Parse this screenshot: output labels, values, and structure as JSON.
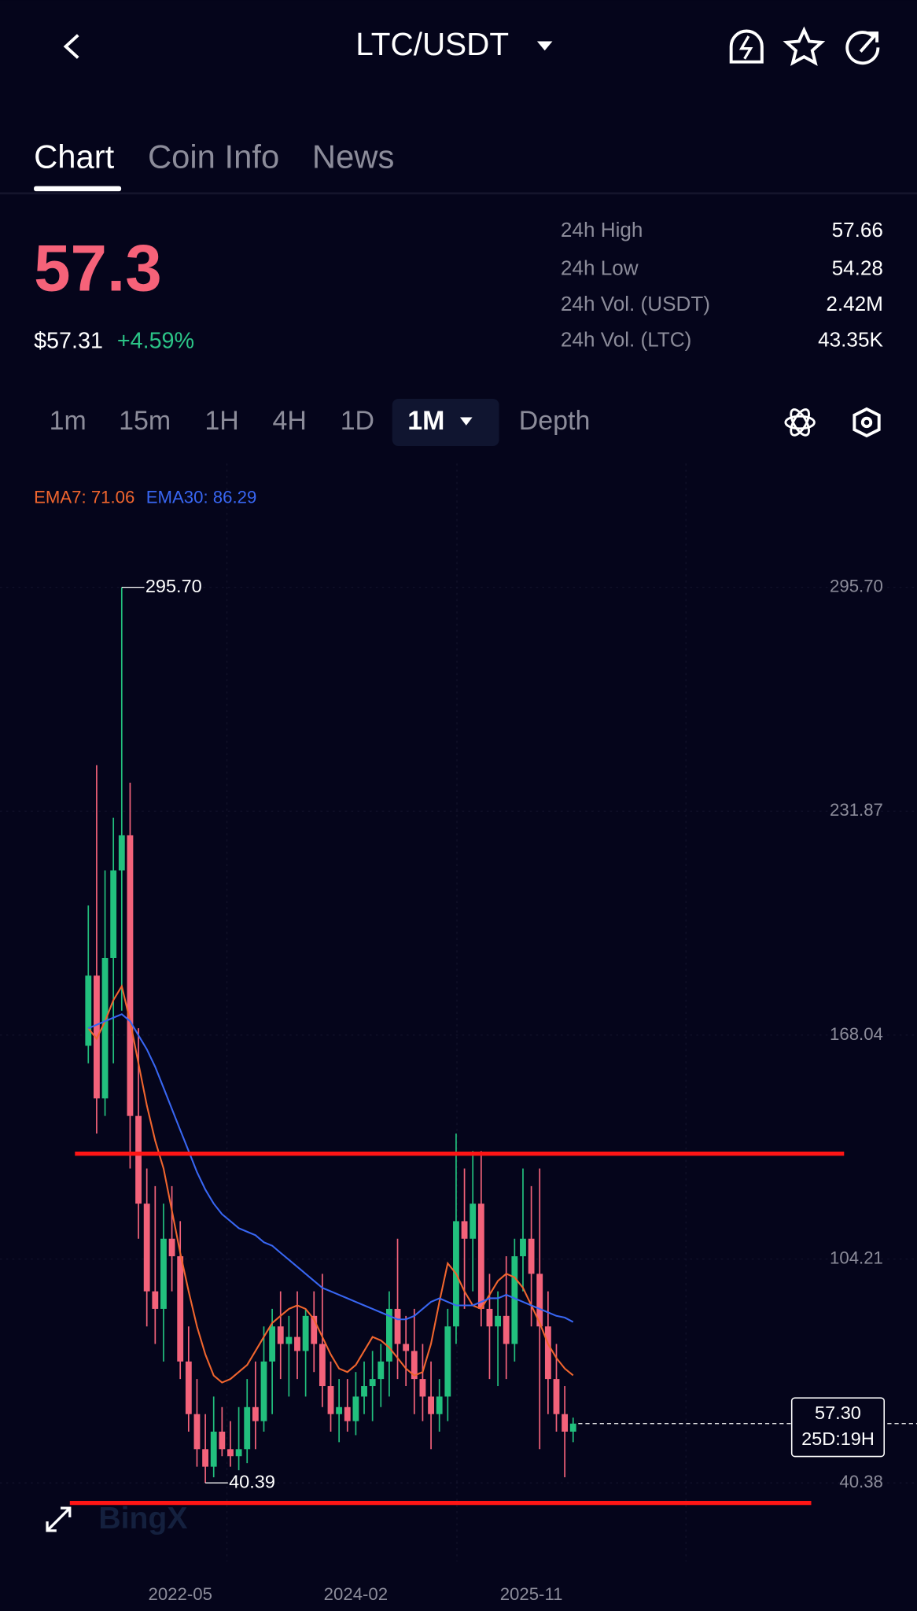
{
  "header": {
    "title": "LTC/USDT"
  },
  "tabs": [
    "Chart",
    "Coin Info",
    "News"
  ],
  "price": {
    "last": "57.3",
    "usd": "$57.31",
    "change": "+4.59%"
  },
  "stats": [
    {
      "label": "24h High",
      "value": "57.66"
    },
    {
      "label": "24h Low",
      "value": "54.28"
    },
    {
      "label": "24h Vol. (USDT)",
      "value": "2.42M"
    },
    {
      "label": "24h Vol. (LTC)",
      "value": "43.35K"
    }
  ],
  "intervals": [
    "1m",
    "15m",
    "1H",
    "4H",
    "1D",
    "1M",
    "Depth"
  ],
  "watermark": "BingX",
  "chart_data": {
    "type": "candlestick",
    "categories": [
      null,
      null,
      null,
      null,
      null,
      null,
      null,
      null,
      null,
      null,
      null,
      "2022-05",
      null,
      null,
      null,
      null,
      null,
      null,
      null,
      null,
      null,
      null,
      null,
      null,
      null,
      null,
      null,
      null,
      null,
      null,
      null,
      null,
      "2024-02",
      null,
      null,
      null,
      null,
      null,
      null,
      null,
      null,
      null,
      null,
      null,
      null,
      null,
      null,
      null,
      null,
      null,
      null,
      null,
      null,
      "2025-11",
      null,
      null,
      null,
      null,
      null
    ],
    "open": [
      165,
      185,
      150,
      190,
      215,
      225,
      145,
      120,
      95,
      90,
      110,
      105,
      75,
      60,
      50,
      45,
      55,
      50,
      48,
      50,
      62,
      58,
      75,
      85,
      80,
      82,
      78,
      88,
      80,
      68,
      60,
      62,
      58,
      65,
      68,
      70,
      75,
      90,
      80,
      78,
      70,
      65,
      60,
      65,
      85,
      115,
      110,
      120,
      90,
      85,
      88,
      80,
      105,
      110,
      100,
      85,
      70,
      60,
      55
    ],
    "high": [
      205,
      245,
      215,
      230,
      295.7,
      240,
      170,
      130,
      125,
      120,
      125,
      115,
      85,
      70,
      60,
      65,
      62,
      58,
      62,
      70,
      75,
      85,
      90,
      95,
      88,
      95,
      90,
      95,
      100,
      75,
      70,
      70,
      72,
      75,
      78,
      80,
      95,
      110,
      88,
      90,
      80,
      75,
      70,
      90,
      140,
      130,
      135,
      135,
      100,
      95,
      105,
      110,
      130,
      125,
      130,
      95,
      80,
      68,
      59
    ],
    "low": [
      160,
      140,
      145,
      160,
      175,
      130,
      110,
      85,
      80,
      75,
      95,
      70,
      55,
      45,
      40.39,
      42,
      48,
      45,
      44,
      46,
      50,
      55,
      60,
      70,
      65,
      70,
      65,
      72,
      62,
      55,
      52,
      55,
      54,
      60,
      58,
      62,
      65,
      70,
      68,
      60,
      58,
      50,
      55,
      58,
      80,
      90,
      95,
      85,
      70,
      68,
      70,
      75,
      95,
      85,
      50,
      60,
      55,
      42,
      52
    ],
    "close": [
      185,
      150,
      190,
      215,
      225,
      145,
      120,
      95,
      90,
      110,
      105,
      75,
      60,
      50,
      45,
      55,
      50,
      48,
      50,
      62,
      58,
      75,
      85,
      80,
      82,
      78,
      88,
      80,
      68,
      60,
      62,
      58,
      65,
      68,
      70,
      75,
      90,
      80,
      78,
      70,
      65,
      60,
      65,
      85,
      115,
      110,
      120,
      90,
      85,
      88,
      80,
      105,
      110,
      100,
      85,
      70,
      60,
      55,
      57.3
    ],
    "up_color": "#22c07e",
    "down_color": "#f3627a",
    "indicators": [
      {
        "label": "EMA7: 71.06",
        "color": "#f0652e",
        "values": [
          170,
          167,
          172,
          178,
          182,
          172,
          160,
          148,
          138,
          130,
          118,
          106,
          95,
          85,
          77,
          71,
          69,
          70,
          72,
          74,
          78,
          82,
          86,
          88,
          90,
          91,
          90,
          87,
          82,
          77,
          73,
          72,
          74,
          78,
          82,
          81,
          79,
          76,
          73,
          71,
          72,
          80,
          92,
          103,
          100,
          95,
          91,
          90,
          94,
          98,
          100,
          99,
          96,
          91,
          86,
          80,
          76,
          73,
          71.06
        ]
      },
      {
        "label": "EMA30: 86.29",
        "color": "#3866f2",
        "values": [
          170,
          171,
          172,
          173,
          174,
          172,
          168,
          164,
          159,
          153,
          147,
          141,
          135,
          129,
          124,
          120,
          117,
          115,
          113,
          112,
          111,
          109,
          108,
          106,
          104,
          102,
          100,
          98,
          96,
          95,
          94,
          93,
          92,
          91,
          90,
          89,
          88,
          87,
          87,
          88,
          90,
          92,
          93,
          92,
          91,
          91,
          91,
          92,
          93,
          93,
          94,
          93,
          92,
          91,
          90,
          89,
          88,
          87.5,
          86.29
        ]
      }
    ],
    "ylim": [
      18,
      331
    ],
    "yticks": [
      {
        "value": 295.7,
        "label": "295.70"
      },
      231.87,
      168.04,
      104.21,
      40.38
    ],
    "annotations": {
      "high": {
        "value": 295.7,
        "label": "295.70"
      },
      "low": 40.39,
      "last": {
        "value": 57.3,
        "label": "57.30"
      },
      "countdown": "25D:19H"
    }
  }
}
